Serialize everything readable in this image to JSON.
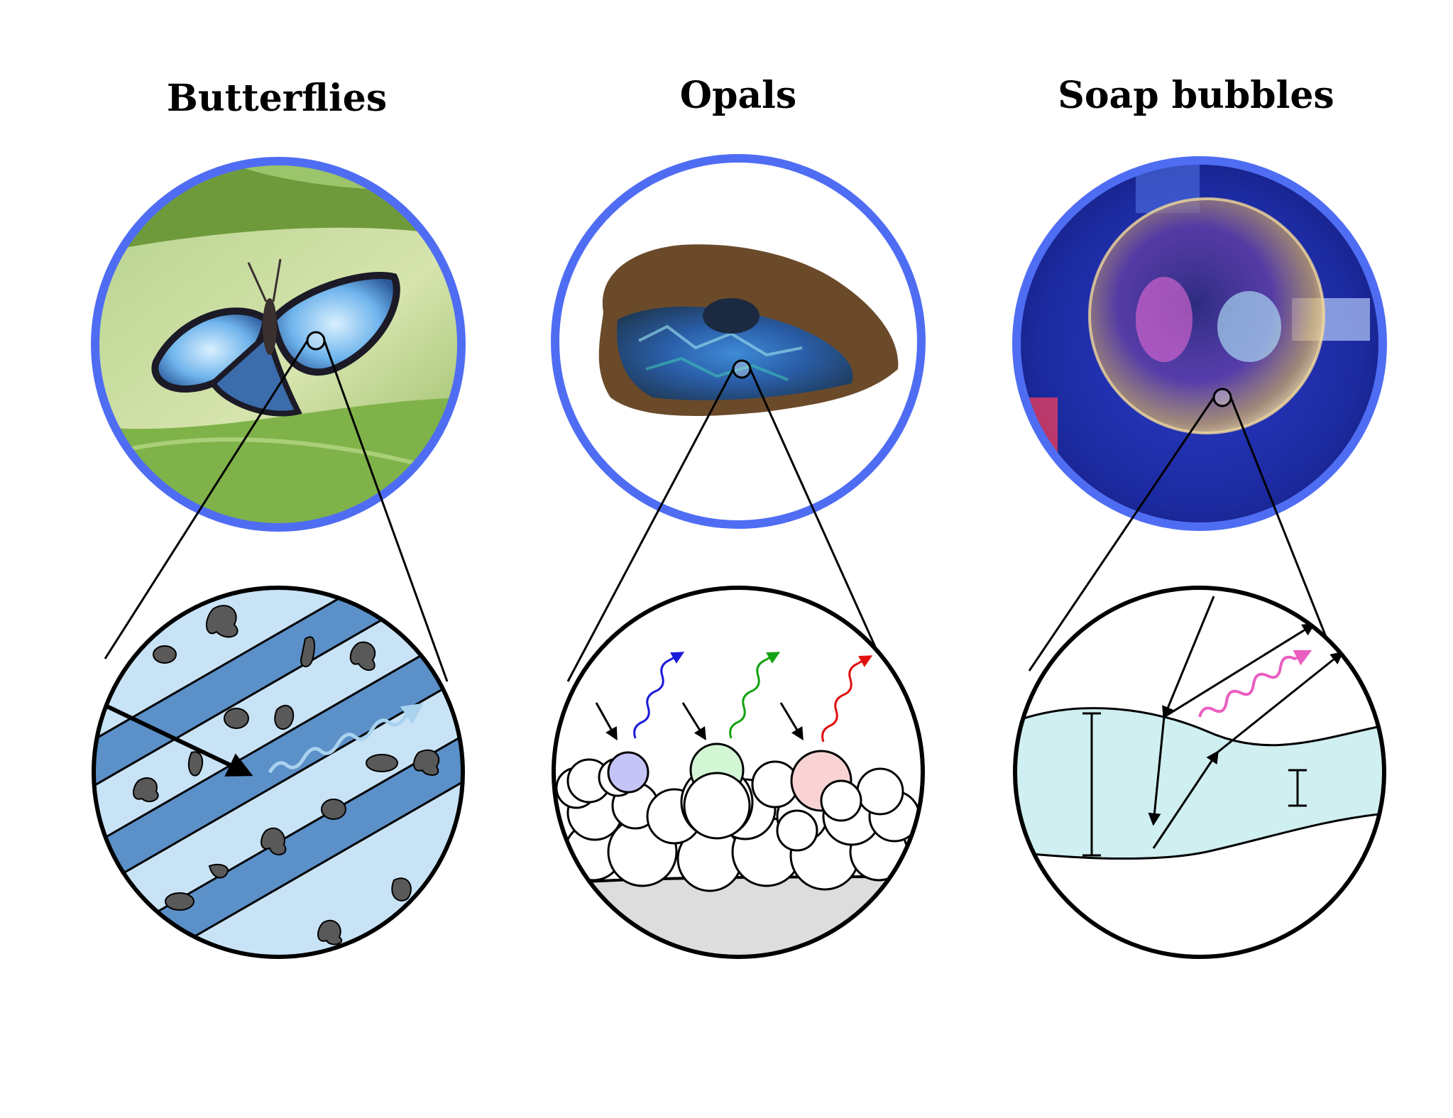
{
  "panels": [
    {
      "id": "butterflies",
      "title": "Butterflies",
      "photo_subject": "blue-morpho-butterfly-on-leaf",
      "structure": "multilayer-scale-structure"
    },
    {
      "id": "opals",
      "title": "Opals",
      "photo_subject": "opal-gemstone",
      "structure": "colloidal-sphere-packing"
    },
    {
      "id": "soap-bubbles",
      "title": "Soap bubbles",
      "photo_subject": "soap-bubble",
      "structure": "thin-film-interference"
    }
  ],
  "colors": {
    "photo_ring": "#4f6df3",
    "layer_light": "#c9e3f6",
    "layer_dark": "#5b90c8",
    "melanin": "#595959",
    "film": "#cfeff1",
    "substrate": "#dddddd",
    "sphere_violet": "#c5c4f7",
    "sphere_green": "#d3f6d4",
    "sphere_pink": "#f9d3d3",
    "wave_blue": "#1a1adb",
    "wave_green": "#13a213",
    "wave_red": "#e01010",
    "wave_pink": "#ea5ec0",
    "wave_pale": "#a9d2ee"
  },
  "icons": [
    "incident-light-arrow-icon",
    "reflected-light-wave-icon",
    "magnifier-circle-icon"
  ]
}
